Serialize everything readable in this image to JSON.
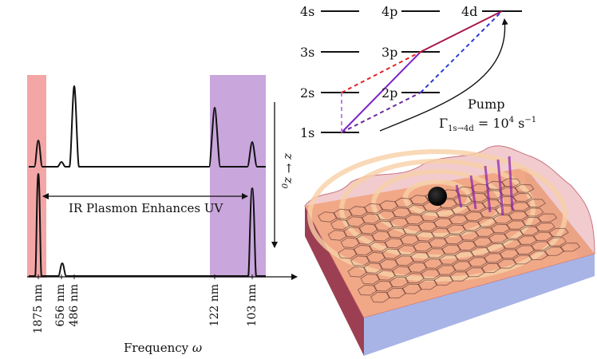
{
  "spectrum": {
    "xlabel_prefix": "Frequency ",
    "xlabel_symbol": "ω",
    "ticks": [
      "1875 nm",
      "656 nm",
      "486 nm",
      "122 nm",
      "103 nm"
    ],
    "arrow_label": "IR Plasmon Enhances UV",
    "z_label": "z ← z",
    "z_sub": "0",
    "ir_band_color": "#f4a6a6",
    "uv_band_color": "#c9a6dc"
  },
  "levels": {
    "state_labels": [
      "1s",
      "2s",
      "2p",
      "3s",
      "3p",
      "4s",
      "4p",
      "4d"
    ],
    "pump_label": "Pump",
    "rate_prefix": "Γ",
    "rate_sub": "1s→4d",
    "rate_equals": " = 10",
    "rate_exp": "4",
    "rate_unit": " s",
    "rate_unit_exp": "−1",
    "colors": {
      "purple": "#7a22c8",
      "magenta": "#a8154f",
      "red_dashed": "#e02424",
      "blue_dashed": "#2a3cd8",
      "violet_dashed": "#6a2a9c",
      "lilac_dashed": "#c77ee0"
    }
  },
  "graphene": {
    "slab_top_color": "#f1a27a",
    "slab_side_color": "#a8b4e6",
    "slab_front_color": "#9d3f52",
    "wave_color": "#e6a0a6"
  }
}
